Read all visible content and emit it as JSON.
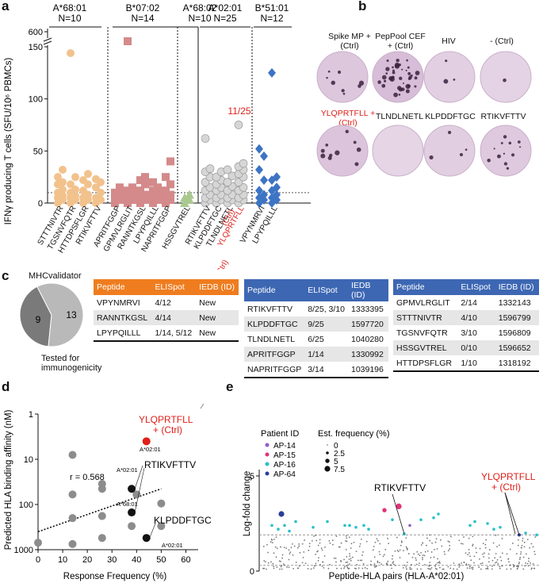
{
  "panels": {
    "a": "a",
    "b": "b",
    "c": "c",
    "d": "d",
    "e": "e"
  },
  "panel_a": {
    "ylabel": "IFNγ producing T cells (SFU/10⁶ PBMCs)",
    "groups": [
      {
        "allele": "A*68:01",
        "n": "N=10",
        "peptides": [
          "STTTNIVTR",
          "TGSNVFQTR",
          "HTTDPSFLGR",
          "RTIKVFTTV"
        ]
      },
      {
        "allele": "B*07:02",
        "n": "N=14",
        "peptides": [
          "APRITFGGP",
          "GPMVLRGLIT",
          "RANNTKGSL",
          "LPYPQILLL",
          "NAPRITFGGP"
        ]
      },
      {
        "allele": "A*68:02",
        "n": "N=10",
        "peptides": [
          "HSSGVTREL"
        ]
      },
      {
        "allele": "A*02:01",
        "n": "N=25",
        "peptides": [
          "RTIKVFTTV",
          "KLPDDFTGC",
          "TLNDLNETL",
          "YLQPRTFLL",
          "(Ctrl)"
        ]
      },
      {
        "allele": "B*51:01",
        "n": "N=12",
        "peptides": [
          "VPYNMRVI",
          "LPYPQILLL"
        ]
      }
    ],
    "annotation": "11/25",
    "ctrl_label": "+ (Ctrl)"
  },
  "chart_data": [
    {
      "type": "scatter",
      "title": "IFNγ ELISpot responses",
      "ylabel": "IFNγ producing T cells (SFU/10⁶ PBMCs)",
      "yticks": [
        0,
        50,
        100,
        150,
        600
      ],
      "ybreak": "axis break between 150 and 600",
      "series": [
        {
          "name": "STTTNIVTR",
          "values": [
            0,
            3,
            5,
            7,
            10,
            13,
            18,
            20,
            25,
            32
          ]
        },
        {
          "name": "TGSNVFQTR",
          "values": [
            0,
            3,
            5,
            7,
            10,
            13,
            18,
            25,
            510
          ]
        },
        {
          "name": "HTTDPSFLGR",
          "values": [
            0,
            3,
            5,
            8,
            12,
            18,
            22,
            28
          ]
        },
        {
          "name": "RTIKVFTTV (A*68:01)",
          "values": [
            0,
            3,
            5,
            10,
            15,
            20,
            23
          ]
        },
        {
          "name": "APRITFGGP",
          "values": [
            0,
            3,
            5,
            8,
            10,
            15
          ]
        },
        {
          "name": "GPMVLRGLIT",
          "values": [
            0,
            3,
            5,
            8,
            12,
            15,
            560
          ]
        },
        {
          "name": "RANNTKGSL",
          "values": [
            0,
            3,
            5,
            8,
            12,
            18,
            22,
            25
          ]
        },
        {
          "name": "LPYPQILLL (B*07:02)",
          "values": [
            0,
            3,
            5,
            8,
            12,
            15,
            20
          ]
        },
        {
          "name": "NAPRITFGGP",
          "values": [
            0,
            3,
            5,
            8,
            12,
            18,
            25,
            40
          ]
        },
        {
          "name": "HSSGVTREL",
          "values": [
            0,
            3,
            5,
            8
          ]
        },
        {
          "name": "RTIKVFTTV (A*02:01)",
          "values": [
            0,
            3,
            5,
            8,
            12,
            15,
            20,
            25,
            30,
            33,
            62
          ]
        },
        {
          "name": "KLPDDFTGC",
          "values": [
            0,
            3,
            5,
            8,
            12,
            15,
            18,
            22,
            25,
            30
          ]
        },
        {
          "name": "TLNDLNETL",
          "values": [
            0,
            3,
            5,
            8,
            12,
            16,
            20,
            26,
            32
          ]
        },
        {
          "name": "YLQPRTFLL (Ctrl)",
          "values": [
            0,
            3,
            5,
            8,
            12,
            15,
            20,
            25,
            28,
            32,
            35,
            38,
            75
          ]
        },
        {
          "name": "VPYNMRVI",
          "values": [
            0,
            3,
            5,
            8,
            12,
            22,
            32,
            45,
            52
          ]
        },
        {
          "name": "LPYPQILLL (B*51:01)",
          "values": [
            0,
            3,
            5,
            8,
            12,
            15,
            22,
            25,
            125
          ]
        }
      ]
    },
    {
      "type": "scatter",
      "title": "Predicted binding vs response frequency",
      "xlabel": "Response Frequency (%)",
      "ylabel": "Predicted HLA binding affinity (nM)",
      "xlim": [
        0,
        65
      ],
      "ylim": [
        1,
        1000
      ],
      "yscale": "log",
      "xticks": [
        0,
        10,
        20,
        30,
        40,
        50,
        60
      ],
      "yticks": [
        1,
        10,
        100,
        1000
      ],
      "annotation": "r = 0.568",
      "points": [
        {
          "x": 0,
          "y": 700
        },
        {
          "x": 14,
          "y": 8
        },
        {
          "x": 14,
          "y": 60
        },
        {
          "x": 14,
          "y": 200
        },
        {
          "x": 14,
          "y": 750
        },
        {
          "x": 26,
          "y": 35
        },
        {
          "x": 26,
          "y": 45
        },
        {
          "x": 26,
          "y": 180
        },
        {
          "x": 26,
          "y": 550
        },
        {
          "x": 38,
          "y": 300
        },
        {
          "x": 40,
          "y": 60
        },
        {
          "x": 50,
          "y": 95
        },
        {
          "x": 50,
          "y": 300
        },
        {
          "x": 38,
          "y": 45,
          "label": "RTIKVFTTV",
          "allele": "A*02:01"
        },
        {
          "x": 38,
          "y": 150,
          "label": "RTIKVFTTV",
          "allele": "A*68:01"
        },
        {
          "x": 44,
          "y": 550,
          "label": "KLPDDFTGC",
          "allele": "A*02:01"
        },
        {
          "x": 44,
          "y": 4,
          "label": "YLQPRTFLL + (Ctrl)",
          "allele": "A*02:01"
        }
      ]
    },
    {
      "type": "scatter",
      "title": "Log-fold change per peptide-HLA pair",
      "xlabel": "Peptide-HLA pairs (HLA-A*02:01)",
      "ylabel": "Log-fold change",
      "yticks": [
        0,
        5
      ],
      "legend": [
        {
          "patient": "AP-14",
          "color": "#8e5fc7"
        },
        {
          "patient": "AP-15",
          "color": "#e0337a"
        },
        {
          "patient": "AP-16",
          "color": "#28c0c8"
        },
        {
          "patient": "AP-64",
          "color": "#2c3e9a"
        }
      ],
      "size_legend": [
        "0",
        "2.5",
        "5",
        "7.5"
      ]
    }
  ],
  "panel_b": {
    "row1": [
      "Spike MP + (Ctrl)",
      "PepPool CEF + (Ctrl)",
      "HIV",
      "- (Ctrl)"
    ],
    "row2": [
      "YLQPRTFLL + (Ctrl)",
      "TLNDLNETL",
      "KLPDDFTGC",
      "RTIKVFTTV"
    ]
  },
  "panel_c": {
    "pie_title": "MHCvalidator",
    "pie_values": [
      9,
      13
    ],
    "pie_label_9": "9",
    "pie_label_13": "13",
    "tested": "Tested for",
    "tested2": "immunogenicity",
    "headers": [
      "Peptide",
      "ELISpot",
      "IEDB (ID)"
    ],
    "table1": [
      [
        "VPYNMRVI",
        "4/12",
        "New"
      ],
      [
        "RANNTKGSL",
        "4/14",
        "New"
      ],
      [
        "LPYPQILLL",
        "1/14, 5/12",
        "New"
      ]
    ],
    "table2": [
      [
        "RTIKVFTTV",
        "8/25, 3/10",
        "1333395"
      ],
      [
        "KLPDDFTGC",
        "9/25",
        "1597720"
      ],
      [
        "TLNDLNETL",
        "6/25",
        "1040280"
      ],
      [
        "APRITFGGP",
        "1/14",
        "1330992"
      ],
      [
        "NAPRITFGGP",
        "3/14",
        "1039196"
      ]
    ],
    "table3": [
      [
        "GPMVLRGLIT",
        "2/14",
        "1332143"
      ],
      [
        "STTTNIVTR",
        "4/10",
        "1596799"
      ],
      [
        "TGSNVFQTR",
        "3/10",
        "1596809"
      ],
      [
        "HSSGVTREL",
        "0/10",
        "1596652"
      ],
      [
        "HTTDPSFLGR",
        "1/10",
        "1318192"
      ]
    ]
  },
  "panel_d": {
    "lbl_yl": "YLQPRTFLL",
    "lbl_ctrl": "+ (Ctrl)",
    "lbl_a0201_a": "A*02:01",
    "lbl_rt": "RTIKVFTTV",
    "lbl_a0201_b": "A*02:01",
    "lbl_a6801": "A*68:01",
    "lbl_kl": "KLPDDFTGC",
    "lbl_a0201_c": "A*02:01",
    "r": "r = 0.568",
    "xlabel": "Response Frequency (%)",
    "ylabel": "Predicted HLA binding affinity (nM)"
  },
  "panel_e": {
    "legend_title": "Patient ID",
    "size_title": "Est. frequency (%)",
    "rt_label": "RTIKVFTTV",
    "yl_label": "YLQPRTFLL",
    "ctrl": "+ (Ctrl)",
    "xlabel": "Peptide-HLA pairs (HLA-A*02:01)",
    "ylabel": "Log-fold change"
  }
}
